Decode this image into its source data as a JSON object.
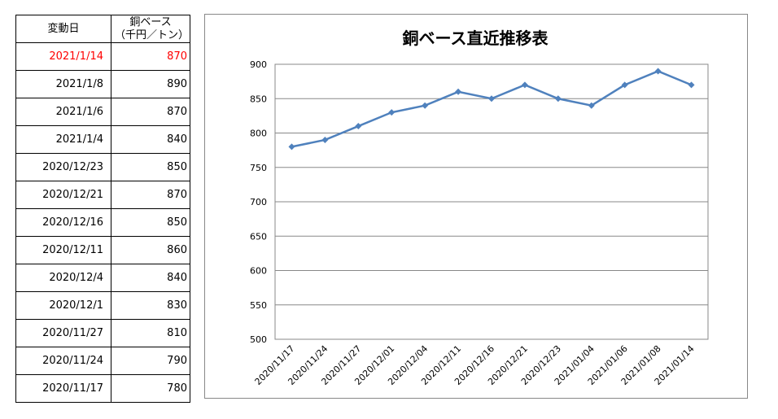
{
  "table": {
    "header_date": "変動日",
    "header_value_line1": "銅ベース",
    "header_value_line2": "（千円／トン）",
    "rows": [
      {
        "date": "2021/1/14",
        "value": "870"
      },
      {
        "date": "2021/1/8",
        "value": "890"
      },
      {
        "date": "2021/1/6",
        "value": "870"
      },
      {
        "date": "2021/1/4",
        "value": "840"
      },
      {
        "date": "2020/12/23",
        "value": "850"
      },
      {
        "date": "2020/12/21",
        "value": "870"
      },
      {
        "date": "2020/12/16",
        "value": "850"
      },
      {
        "date": "2020/12/11",
        "value": "860"
      },
      {
        "date": "2020/12/4",
        "value": "840"
      },
      {
        "date": "2020/12/1",
        "value": "830"
      },
      {
        "date": "2020/11/27",
        "value": "810"
      },
      {
        "date": "2020/11/24",
        "value": "790"
      },
      {
        "date": "2020/11/17",
        "value": "780"
      }
    ],
    "latest_row_color": "#ff0000"
  },
  "chart_data": {
    "type": "line",
    "title": "銅ベース直近推移表",
    "categories": [
      "2020/11/17",
      "2020/11/24",
      "2020/11/27",
      "2020/12/01",
      "2020/12/04",
      "2020/12/11",
      "2020/12/16",
      "2020/12/21",
      "2020/12/23",
      "2021/01/04",
      "2021/01/06",
      "2021/01/08",
      "2021/01/14"
    ],
    "series": [
      {
        "values": [
          780,
          790,
          810,
          830,
          840,
          860,
          850,
          870,
          850,
          840,
          870,
          890,
          870
        ],
        "color": "#4f81bd",
        "marker": "diamond"
      }
    ],
    "ylim": [
      500,
      900
    ],
    "yticks": [
      500,
      550,
      600,
      650,
      700,
      750,
      800,
      850,
      900
    ],
    "grid": true,
    "legend": "none"
  }
}
